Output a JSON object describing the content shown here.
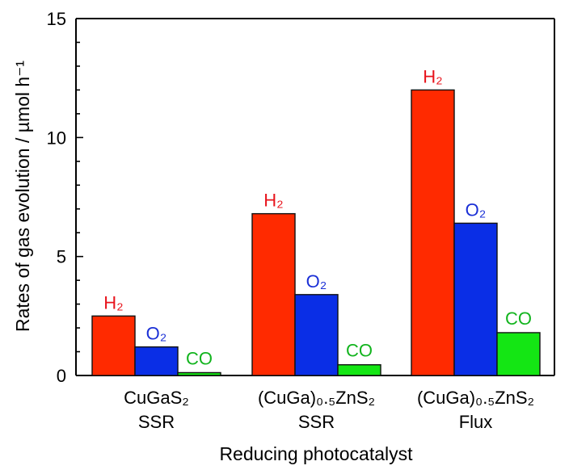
{
  "chart_data": {
    "type": "bar",
    "title": "",
    "xlabel": "Reducing photocatalyst",
    "ylabel": "Rates of gas evolution / µmol h⁻¹",
    "ylim": [
      0,
      15
    ],
    "yticks": [
      0,
      5,
      10,
      15
    ],
    "grid": false,
    "categories": [
      {
        "line1": "CuGaS₂",
        "line2": "SSR"
      },
      {
        "line1": "(CuGa)₀.₅ZnS₂",
        "line2": "SSR"
      },
      {
        "line1": "(CuGa)₀.₅ZnS₂",
        "line2": "Flux"
      }
    ],
    "series": [
      {
        "name": "H2",
        "label": "H₂",
        "color": "#ff2a00",
        "label_color": "#e8141c",
        "values": [
          2.5,
          6.8,
          12.0
        ]
      },
      {
        "name": "O2",
        "label": "O₂",
        "color": "#0a2ee6",
        "label_color": "#1a2fd6",
        "values": [
          1.2,
          3.4,
          6.4
        ]
      },
      {
        "name": "CO",
        "label": "CO",
        "color": "#14e614",
        "label_color": "#12b41e",
        "values": [
          0.12,
          0.45,
          1.8
        ]
      }
    ],
    "colors": {
      "axis": "#000000",
      "bar_edge": "#111111"
    }
  }
}
